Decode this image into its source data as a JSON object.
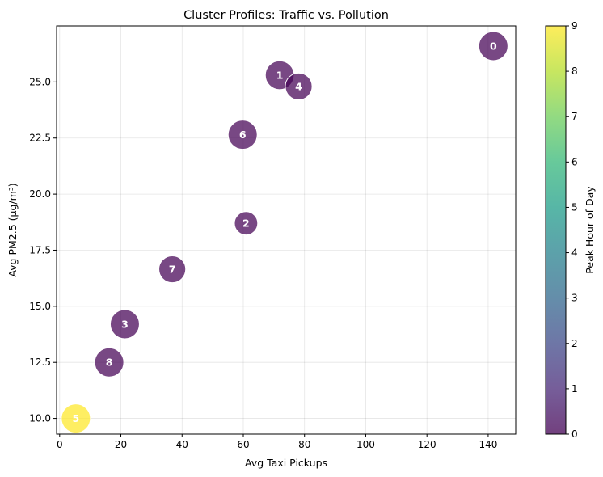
{
  "chart_data": {
    "type": "scatter",
    "title": "Cluster Profiles: Traffic vs. Pollution",
    "xlabel": "Avg Taxi Pickups",
    "ylabel": "Avg PM2.5 (μg/m³)",
    "xlim": [
      -1,
      149
    ],
    "ylim": [
      9.3,
      27.5
    ],
    "xticks": [
      "0",
      "20",
      "40",
      "60",
      "80",
      "100",
      "120",
      "140"
    ],
    "yticks": [
      "10.0",
      "12.5",
      "15.0",
      "17.5",
      "20.0",
      "22.5",
      "25.0"
    ],
    "grid": true,
    "colorbar": {
      "label": "Peak Hour of Day",
      "range": [
        0,
        9
      ],
      "ticks": [
        "0",
        "1",
        "2",
        "3",
        "4",
        "5",
        "6",
        "7",
        "8",
        "9"
      ],
      "colormap": "viridis"
    },
    "points": [
      {
        "label": "0",
        "x": 141.7,
        "y": 26.6,
        "peak_hour": 0,
        "size": 1.0
      },
      {
        "label": "1",
        "x": 71.9,
        "y": 25.3,
        "peak_hour": 0,
        "size": 0.98
      },
      {
        "label": "2",
        "x": 60.9,
        "y": 18.7,
        "peak_hour": 0,
        "size": 0.64
      },
      {
        "label": "3",
        "x": 21.3,
        "y": 14.2,
        "peak_hour": 0,
        "size": 1.0
      },
      {
        "label": "4",
        "x": 78.1,
        "y": 24.8,
        "peak_hour": 0,
        "size": 0.85
      },
      {
        "label": "5",
        "x": 5.3,
        "y": 10.0,
        "peak_hour": 9,
        "size": 1.0
      },
      {
        "label": "6",
        "x": 59.8,
        "y": 22.65,
        "peak_hour": 0,
        "size": 1.0
      },
      {
        "label": "7",
        "x": 36.8,
        "y": 16.65,
        "peak_hour": 0,
        "size": 0.85
      },
      {
        "label": "8",
        "x": 16.2,
        "y": 12.5,
        "peak_hour": 0,
        "size": 1.0
      }
    ]
  }
}
